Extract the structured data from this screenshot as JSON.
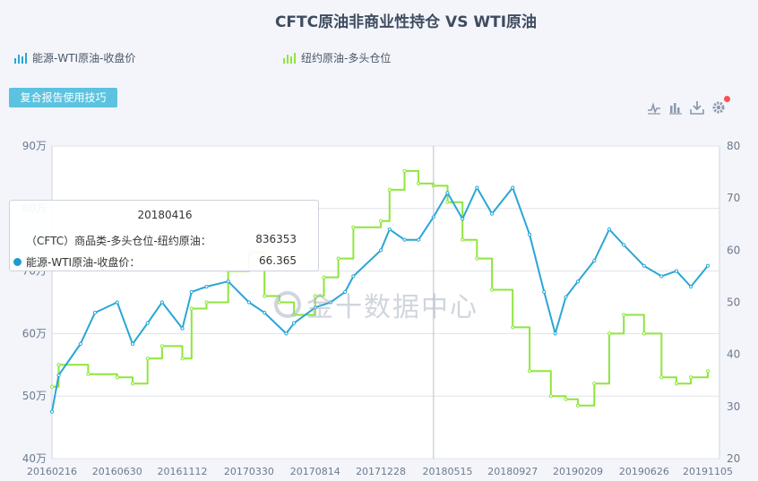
{
  "title": "CFTC原油非商业性持仓 VS WTI原油",
  "legend": [
    {
      "label": "能源-WTI原油-收盘价",
      "color": "#2aa6d6"
    },
    {
      "label": "纽约原油-多头仓位",
      "color": "#8ee63c"
    }
  ],
  "tips_button": "复合报告使用技巧",
  "toolbox": [
    "line-chart-icon",
    "bar-chart-icon",
    "download-icon",
    "gear-icon"
  ],
  "tooltip": {
    "date": "20180416",
    "rows": [
      {
        "label": "（CFTC）商品类-多头仓位-纽约原油：",
        "value": "836353"
      },
      {
        "label": "能源-WTI原油-收盘价：",
        "value": "66.365"
      }
    ]
  },
  "watermark": "金十数据中心",
  "chart_data": {
    "type": "line",
    "x_ticks": [
      "20160216",
      "20160630",
      "20161112",
      "20170330",
      "20170814",
      "20171228",
      "20180515",
      "20180927",
      "20190209",
      "20190626",
      "20191105"
    ],
    "y_left_ticks": [
      "40万",
      "50万",
      "60万",
      "70万",
      "80万",
      "90万"
    ],
    "y_right_ticks": [
      "20",
      "30",
      "40",
      "50",
      "60",
      "70",
      "80"
    ],
    "y_left_range": [
      400000,
      900000
    ],
    "y_right_range": [
      20,
      80
    ],
    "series": [
      {
        "name": "纽约原油-多头仓位",
        "axis": "left",
        "color": "#8ee63c",
        "step": true,
        "points": [
          [
            "20160216",
            515000
          ],
          [
            "20160301",
            550000
          ],
          [
            "20160501",
            535000
          ],
          [
            "20160630",
            530000
          ],
          [
            "20160801",
            520000
          ],
          [
            "20160901",
            560000
          ],
          [
            "20161001",
            580000
          ],
          [
            "20161112",
            560000
          ],
          [
            "20161201",
            640000
          ],
          [
            "20170101",
            650000
          ],
          [
            "20170215",
            700000
          ],
          [
            "20170330",
            730000
          ],
          [
            "20170501",
            660000
          ],
          [
            "20170601",
            650000
          ],
          [
            "20170701",
            630000
          ],
          [
            "20170814",
            660000
          ],
          [
            "20170901",
            690000
          ],
          [
            "20171001",
            720000
          ],
          [
            "20171101",
            770000
          ],
          [
            "20171228",
            780000
          ],
          [
            "20180115",
            830000
          ],
          [
            "20180215",
            860000
          ],
          [
            "20180316",
            840000
          ],
          [
            "20180416",
            836353
          ],
          [
            "20180515",
            810000
          ],
          [
            "20180615",
            750000
          ],
          [
            "20180715",
            720000
          ],
          [
            "20180815",
            670000
          ],
          [
            "20180927",
            610000
          ],
          [
            "20181101",
            540000
          ],
          [
            "20181215",
            500000
          ],
          [
            "20190115",
            495000
          ],
          [
            "20190209",
            485000
          ],
          [
            "20190315",
            520000
          ],
          [
            "20190415",
            600000
          ],
          [
            "20190515",
            630000
          ],
          [
            "20190626",
            600000
          ],
          [
            "20190801",
            530000
          ],
          [
            "20190901",
            520000
          ],
          [
            "20191001",
            530000
          ],
          [
            "20191105",
            540000
          ]
        ]
      },
      {
        "name": "能源-WTI原油-收盘价",
        "axis": "right",
        "color": "#2aa6d6",
        "step": false,
        "points": [
          [
            "20160216",
            29
          ],
          [
            "20160301",
            36
          ],
          [
            "20160415",
            42
          ],
          [
            "20160515",
            48
          ],
          [
            "20160630",
            50
          ],
          [
            "20160801",
            42
          ],
          [
            "20160901",
            46
          ],
          [
            "20161001",
            50
          ],
          [
            "20161112",
            45
          ],
          [
            "20161201",
            52
          ],
          [
            "20170101",
            53
          ],
          [
            "20170215",
            54
          ],
          [
            "20170330",
            50
          ],
          [
            "20170501",
            48
          ],
          [
            "20170615",
            44
          ],
          [
            "20170701",
            46
          ],
          [
            "20170814",
            49
          ],
          [
            "20170915",
            50
          ],
          [
            "20171015",
            52
          ],
          [
            "20171101",
            55
          ],
          [
            "20171228",
            60
          ],
          [
            "20180115",
            64
          ],
          [
            "20180215",
            62
          ],
          [
            "20180316",
            62
          ],
          [
            "20180416",
            66.365
          ],
          [
            "20180515",
            71
          ],
          [
            "20180615",
            66
          ],
          [
            "20180715",
            72
          ],
          [
            "20180815",
            67
          ],
          [
            "20180927",
            72
          ],
          [
            "20181101",
            63
          ],
          [
            "20181201",
            52
          ],
          [
            "20181224",
            44
          ],
          [
            "20190115",
            51
          ],
          [
            "20190209",
            54
          ],
          [
            "20190315",
            58
          ],
          [
            "20190415",
            64
          ],
          [
            "20190515",
            61
          ],
          [
            "20190626",
            57
          ],
          [
            "20190801",
            55
          ],
          [
            "20190901",
            56
          ],
          [
            "20191001",
            53
          ],
          [
            "20191105",
            57
          ]
        ]
      }
    ]
  }
}
